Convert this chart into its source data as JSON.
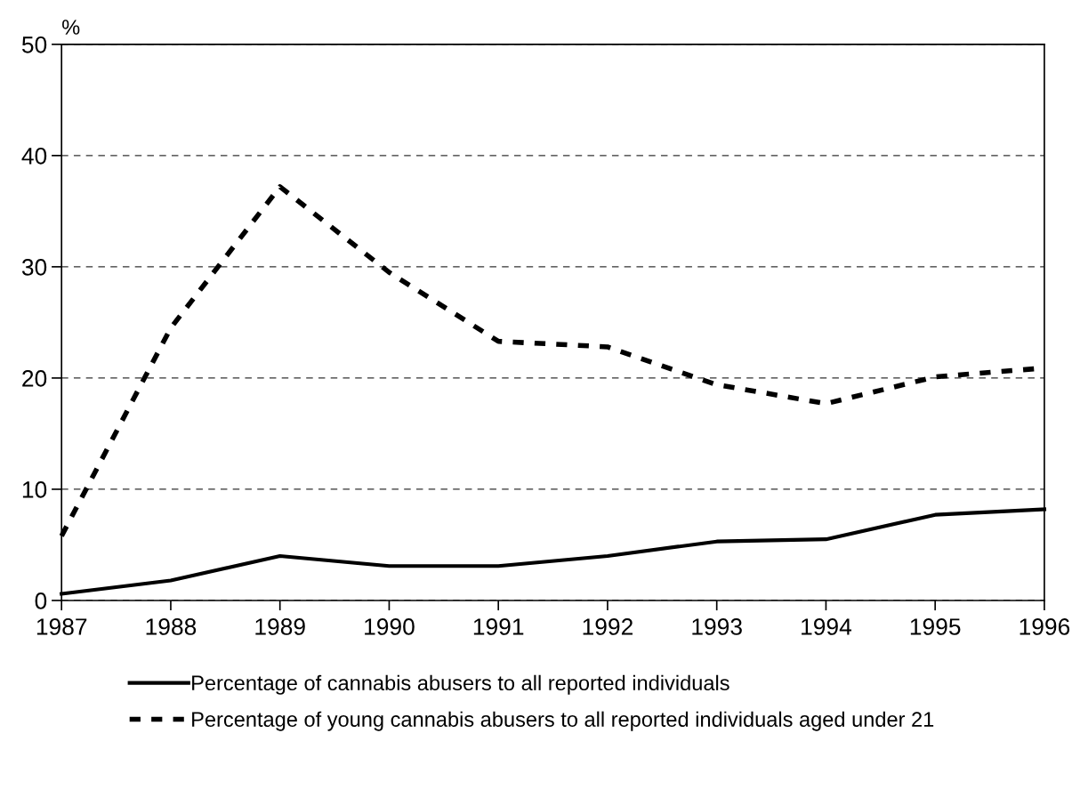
{
  "chart_data": {
    "type": "line",
    "ylabel": "%",
    "x": [
      1987,
      1988,
      1989,
      1990,
      1991,
      1992,
      1993,
      1994,
      1995,
      1996
    ],
    "series": [
      {
        "name": "Percentage of cannabis abusers to all reported individuals",
        "color": "#000000",
        "line_style": "solid",
        "values": [
          0.6,
          1.8,
          4.0,
          3.1,
          3.1,
          4.0,
          5.3,
          5.5,
          7.7,
          8.2
        ]
      },
      {
        "name": "Percentage of young cannabis abusers to all reported individuals aged under 21",
        "color": "#000000",
        "line_style": "dashed",
        "values": [
          5.8,
          24.5,
          37.2,
          29.5,
          23.3,
          22.8,
          19.4,
          17.7,
          20.1,
          20.9
        ]
      }
    ],
    "xlim": [
      1987,
      1996
    ],
    "xticks": [
      1987,
      1988,
      1989,
      1990,
      1991,
      1992,
      1993,
      1994,
      1995,
      1996
    ],
    "ylim": [
      0,
      50
    ],
    "yticks": [
      0,
      10,
      20,
      30,
      40,
      50
    ],
    "grid": "y",
    "legend": "bottom",
    "marker": "none"
  }
}
